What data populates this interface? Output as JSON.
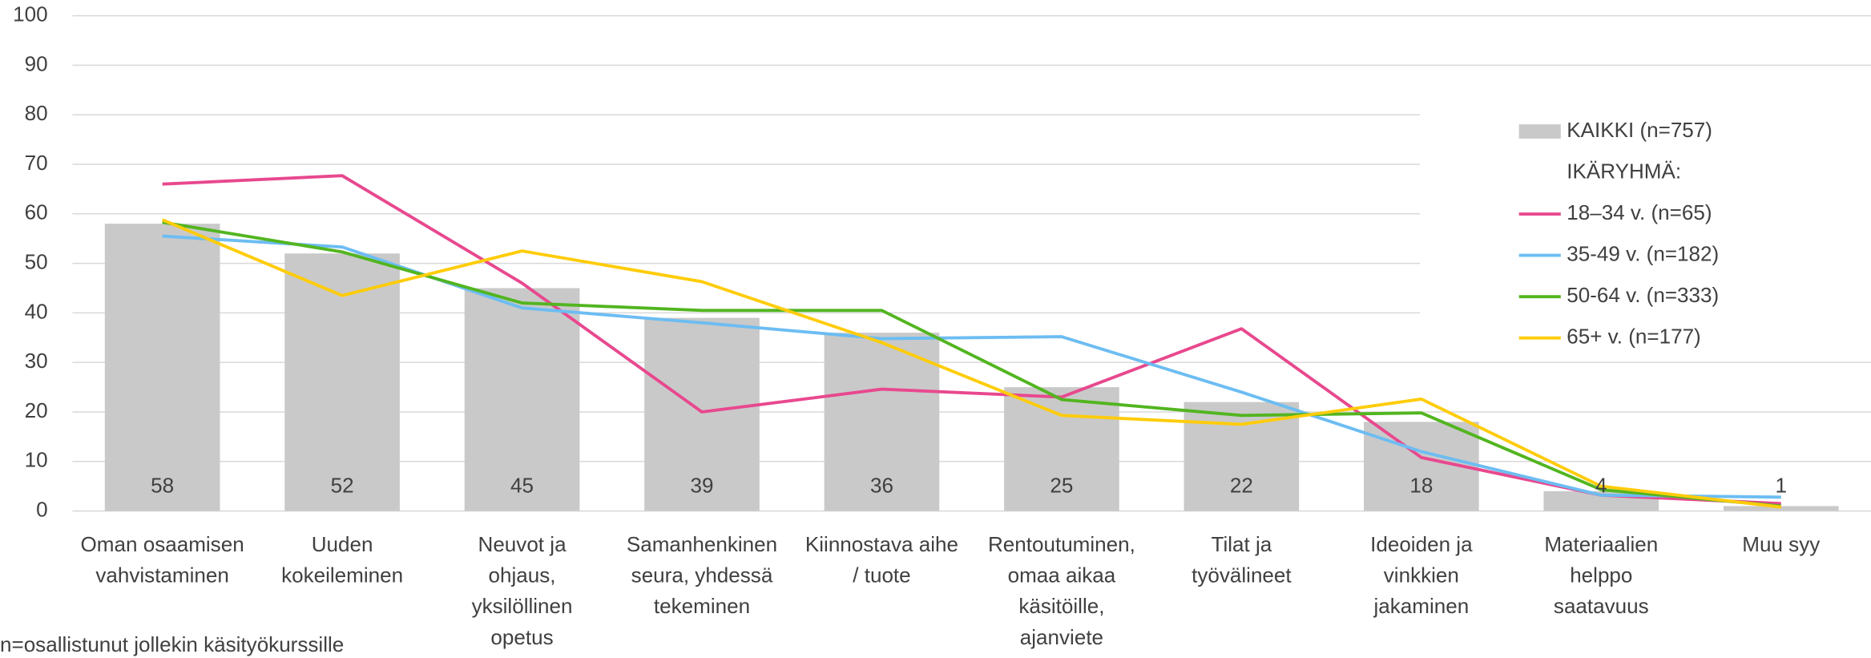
{
  "chart_data": {
    "type": "bar",
    "categories": [
      "Oman osaamisen\nvahvistaminen",
      "Uuden\nkokeileminen",
      "Neuvot ja\nohjaus,\nyksilöllinen\nopetus",
      "Samanhenkinen\nseura, yhdessä\ntekeminen",
      "Kiinnostava aihe\n/ tuote",
      "Rentoutuminen,\nomaa aikaa\nkäsitöille,\najanviete",
      "Tilat ja\ntyövälineet",
      "Ideoiden ja\nvinkkien\njakaminen",
      "Materiaalien\nhelppo\nsaatavuus",
      "Muu syy"
    ],
    "series": [
      {
        "name": "KAIKKI (n=757)",
        "type": "bar",
        "color": "#c9c9c9",
        "values": [
          58,
          52,
          45,
          39,
          36,
          25,
          22,
          18,
          4,
          1
        ]
      },
      {
        "name": "18–34 v. (n=65)",
        "type": "line",
        "color": "#e8488e",
        "values": [
          66,
          67.7,
          46,
          20,
          24.6,
          23,
          36.8,
          10.8,
          3.2,
          1.5
        ]
      },
      {
        "name": "35-49 v. (n=182)",
        "type": "line",
        "color": "#6cbdf2",
        "values": [
          55.5,
          53.3,
          41,
          38,
          34.8,
          35.2,
          24,
          12,
          3.2,
          2.8
        ]
      },
      {
        "name": "50-64 v. (n=333)",
        "type": "line",
        "color": "#52b520",
        "values": [
          58.3,
          52.3,
          42,
          40.5,
          40.5,
          22.5,
          19.3,
          19.8,
          4.3,
          1
        ]
      },
      {
        "name": "65+ v. (n=177)",
        "type": "line",
        "color": "#ffcc0a",
        "values": [
          58.8,
          43.5,
          52.5,
          46.3,
          34,
          19.3,
          17.5,
          22.6,
          5,
          0.8
        ]
      }
    ],
    "legend_heading": "IKÄRYHMÄ:",
    "note": "n=osallistunut jollekin käsityökurssille",
    "ylim": [
      0,
      100
    ],
    "yticks": [
      0,
      10,
      20,
      30,
      40,
      50,
      60,
      70,
      80,
      90,
      100
    ],
    "grid": true,
    "legend": "right"
  }
}
